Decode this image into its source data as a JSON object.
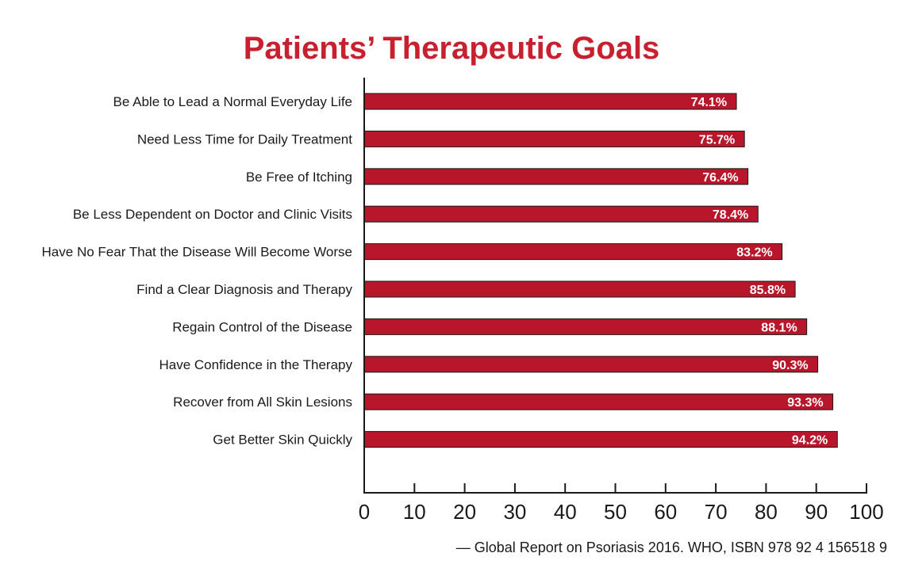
{
  "chart_data": {
    "type": "bar",
    "orientation": "horizontal",
    "title": "Patients’ Therapeutic Goals",
    "categories": [
      "Be Able to Lead a Normal Everyday Life",
      "Need Less Time for Daily Treatment",
      "Be Free of Itching",
      "Be Less Dependent on Doctor and Clinic Visits",
      "Have No Fear That the Disease Will Become Worse",
      "Find a Clear Diagnosis and Therapy",
      "Regain Control of the Disease",
      "Have Confidence in the Therapy",
      "Recover from All Skin Lesions",
      "Get Better Skin Quickly"
    ],
    "values": [
      74.1,
      75.7,
      76.4,
      78.4,
      83.2,
      85.8,
      88.1,
      90.3,
      93.3,
      94.2
    ],
    "value_labels": [
      "74.1%",
      "75.7%",
      "76.4%",
      "78.4%",
      "83.2%",
      "85.8%",
      "88.1%",
      "90.3%",
      "93.3%",
      "94.2%"
    ],
    "xlim": [
      0,
      100
    ],
    "xticks": [
      0,
      10,
      20,
      30,
      40,
      50,
      60,
      70,
      80,
      90,
      100
    ],
    "grid": false,
    "source": "— Global Report on Psoriasis 2016. WHO, ISBN 978 92 4 156518 9",
    "colors": {
      "bar": "#b8162a",
      "title": "#c8202f"
    }
  }
}
